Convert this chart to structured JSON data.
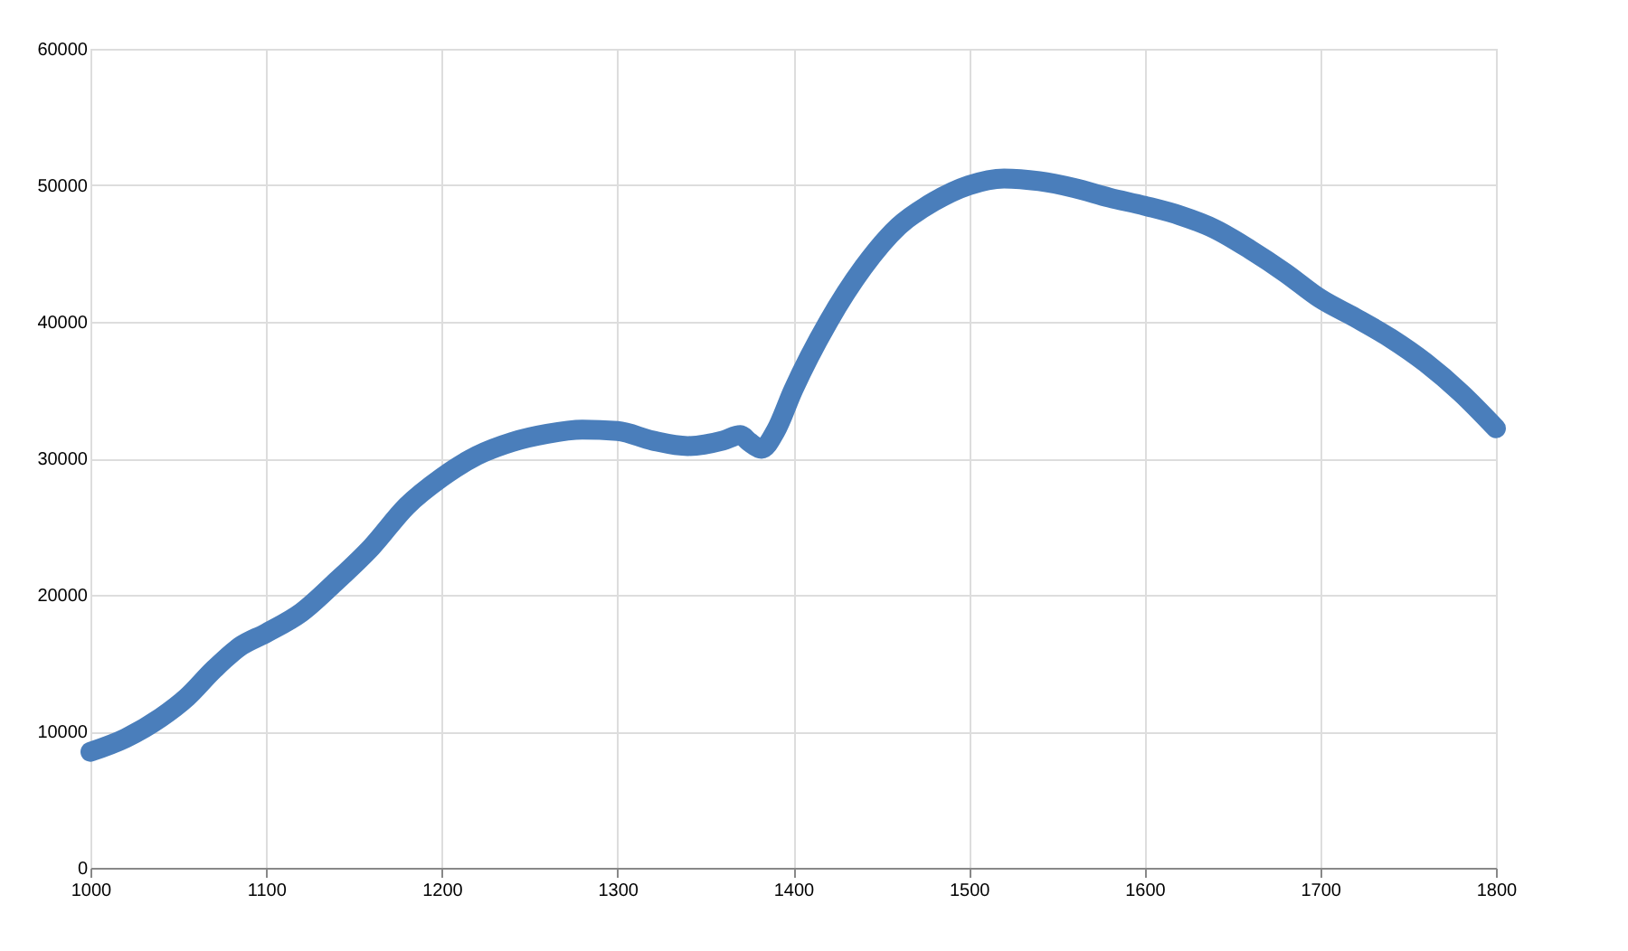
{
  "chart_data": {
    "type": "line",
    "x": [
      1000,
      1020,
      1040,
      1055,
      1070,
      1085,
      1100,
      1120,
      1140,
      1160,
      1180,
      1200,
      1220,
      1240,
      1260,
      1280,
      1300,
      1320,
      1340,
      1360,
      1370,
      1375,
      1382,
      1390,
      1400,
      1420,
      1440,
      1460,
      1480,
      1500,
      1520,
      1540,
      1560,
      1580,
      1600,
      1620,
      1640,
      1660,
      1680,
      1700,
      1720,
      1740,
      1760,
      1780,
      1800
    ],
    "series": [
      {
        "color": "#4a7ebb",
        "values": [
          8500,
          9500,
          11000,
          12500,
          14500,
          16200,
          17200,
          18700,
          21000,
          23500,
          26500,
          28600,
          30200,
          31200,
          31800,
          32100,
          32000,
          31300,
          30900,
          31300,
          31700,
          31200,
          30700,
          32000,
          35000,
          40000,
          44000,
          47000,
          48800,
          50000,
          50500,
          50300,
          49800,
          49100,
          48500,
          47800,
          46800,
          45300,
          43600,
          41700,
          40300,
          38800,
          37000,
          34800,
          32200
        ]
      }
    ],
    "xlim": [
      1000,
      1800
    ],
    "xticks": [
      1000,
      1100,
      1200,
      1300,
      1400,
      1500,
      1600,
      1700,
      1800
    ],
    "ylim": [
      0,
      60000
    ],
    "yticks": [
      0,
      10000,
      20000,
      30000,
      40000,
      50000,
      60000
    ],
    "grid": true,
    "marker": "none",
    "line_style": "solid"
  }
}
